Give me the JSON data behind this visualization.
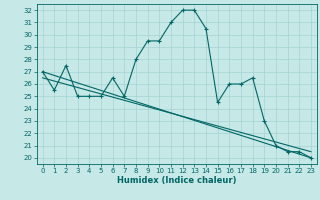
{
  "title": "",
  "xlabel": "Humidex (Indice chaleur)",
  "ylabel": "",
  "background_color": "#c6e8e6",
  "grid_color": "#9ecece",
  "line_color": "#006666",
  "xlim": [
    -0.5,
    23.5
  ],
  "ylim": [
    19.5,
    32.5
  ],
  "yticks": [
    20,
    21,
    22,
    23,
    24,
    25,
    26,
    27,
    28,
    29,
    30,
    31,
    32
  ],
  "xticks": [
    0,
    1,
    2,
    3,
    4,
    5,
    6,
    7,
    8,
    9,
    10,
    11,
    12,
    13,
    14,
    15,
    16,
    17,
    18,
    19,
    20,
    21,
    22,
    23
  ],
  "series1": {
    "x": [
      0,
      1,
      2,
      3,
      4,
      5,
      6,
      7,
      8,
      9,
      10,
      11,
      12,
      13,
      14,
      15,
      16,
      17,
      18,
      19,
      20,
      21,
      22,
      23
    ],
    "y": [
      27.0,
      25.5,
      27.5,
      25.0,
      25.0,
      25.0,
      26.5,
      25.0,
      28.0,
      29.5,
      29.5,
      31.0,
      32.0,
      32.0,
      30.5,
      24.5,
      26.0,
      26.0,
      26.5,
      23.0,
      21.0,
      20.5,
      20.5,
      20.0
    ]
  },
  "series2": {
    "x": [
      0,
      23
    ],
    "y": [
      27.0,
      20.0
    ]
  },
  "series3": {
    "x": [
      0,
      23
    ],
    "y": [
      26.5,
      20.5
    ]
  },
  "tick_fontsize": 5,
  "xlabel_fontsize": 6,
  "marker_size": 3,
  "linewidth": 0.8
}
